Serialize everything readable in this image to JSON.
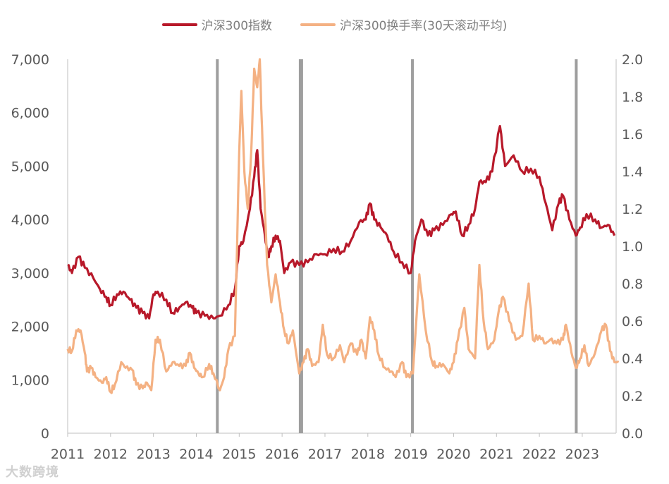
{
  "chart_data": {
    "type": "line",
    "title": "",
    "legend_position": "top",
    "xlim": [
      2011,
      2023.79
    ],
    "x_ticks": [
      "2011",
      "2012",
      "2013",
      "2014",
      "2015",
      "2016",
      "2017",
      "2018",
      "2019",
      "2020",
      "2021",
      "2022",
      "2023"
    ],
    "y_left": {
      "lim": [
        0,
        7000
      ],
      "ticks": [
        "0",
        "1,000",
        "2,000",
        "3,000",
        "4,000",
        "5,000",
        "6,000",
        "7,000"
      ]
    },
    "y_right": {
      "lim": [
        0,
        2.0
      ],
      "ticks": [
        "0.0",
        "0.2",
        "0.4",
        "0.6",
        "0.8",
        "1.0",
        "1.2",
        "1.4",
        "1.6",
        "1.8",
        "2.0"
      ]
    },
    "vertical_markers": [
      2014.49,
      2016.44,
      2019.04,
      2022.86
    ],
    "series": [
      {
        "name": "沪深300指数",
        "axis": "left",
        "color": "#B8192A",
        "x": [
          2011.0,
          2011.1,
          2011.25,
          2011.4,
          2011.6,
          2011.75,
          2011.9,
          2012.0,
          2012.15,
          2012.3,
          2012.45,
          2012.6,
          2012.75,
          2012.9,
          2013.0,
          2013.1,
          2013.3,
          2013.45,
          2013.6,
          2013.75,
          2013.9,
          2014.0,
          2014.2,
          2014.4,
          2014.55,
          2014.75,
          2014.9,
          2015.0,
          2015.1,
          2015.25,
          2015.35,
          2015.42,
          2015.5,
          2015.6,
          2015.67,
          2015.75,
          2015.85,
          2015.95,
          2016.05,
          2016.2,
          2016.4,
          2016.6,
          2016.8,
          2017.0,
          2017.2,
          2017.4,
          2017.6,
          2017.8,
          2017.95,
          2018.05,
          2018.15,
          2018.3,
          2018.45,
          2018.6,
          2018.8,
          2019.0,
          2019.1,
          2019.25,
          2019.4,
          2019.55,
          2019.75,
          2019.95,
          2020.05,
          2020.2,
          2020.35,
          2020.5,
          2020.6,
          2020.75,
          2020.9,
          2021.08,
          2021.2,
          2021.4,
          2021.6,
          2021.8,
          2022.0,
          2022.15,
          2022.3,
          2022.45,
          2022.55,
          2022.7,
          2022.85,
          2022.95,
          2023.1,
          2023.3,
          2023.45,
          2023.6,
          2023.75
        ],
        "values": [
          3150,
          3000,
          3300,
          3100,
          2900,
          2700,
          2550,
          2400,
          2600,
          2650,
          2500,
          2350,
          2250,
          2150,
          2600,
          2650,
          2500,
          2250,
          2350,
          2450,
          2350,
          2250,
          2200,
          2150,
          2200,
          2400,
          2700,
          3500,
          3600,
          4200,
          4800,
          5300,
          4200,
          3700,
          3300,
          3500,
          3700,
          3600,
          3000,
          3200,
          3150,
          3200,
          3350,
          3350,
          3450,
          3400,
          3600,
          3950,
          4000,
          4300,
          4000,
          3850,
          3700,
          3400,
          3200,
          3000,
          3600,
          4000,
          3700,
          3800,
          3900,
          4100,
          4150,
          3700,
          3900,
          4200,
          4700,
          4700,
          4900,
          5750,
          5000,
          5200,
          4900,
          4950,
          4800,
          4300,
          3800,
          4300,
          4450,
          4000,
          3700,
          3850,
          4100,
          4000,
          3850,
          3900,
          3700
        ]
      },
      {
        "name": "沪深300换手率(30天滚动平均)",
        "axis": "right",
        "color": "#F4B183",
        "x": [
          2011.0,
          2011.1,
          2011.2,
          2011.3,
          2011.4,
          2011.45,
          2011.55,
          2011.65,
          2011.8,
          2011.9,
          2012.0,
          2012.1,
          2012.25,
          2012.35,
          2012.5,
          2012.6,
          2012.75,
          2012.85,
          2012.95,
          2013.05,
          2013.15,
          2013.3,
          2013.45,
          2013.6,
          2013.75,
          2013.85,
          2013.95,
          2014.05,
          2014.15,
          2014.3,
          2014.4,
          2014.55,
          2014.65,
          2014.75,
          2014.9,
          2015.0,
          2015.05,
          2015.12,
          2015.2,
          2015.28,
          2015.35,
          2015.42,
          2015.48,
          2015.55,
          2015.65,
          2015.75,
          2015.85,
          2015.95,
          2016.05,
          2016.15,
          2016.25,
          2016.4,
          2016.5,
          2016.6,
          2016.7,
          2016.85,
          2016.95,
          2017.05,
          2017.2,
          2017.35,
          2017.45,
          2017.6,
          2017.75,
          2017.85,
          2017.95,
          2018.05,
          2018.15,
          2018.25,
          2018.4,
          2018.55,
          2018.65,
          2018.8,
          2018.9,
          2019.05,
          2019.2,
          2019.35,
          2019.5,
          2019.6,
          2019.75,
          2019.9,
          2020.0,
          2020.1,
          2020.25,
          2020.35,
          2020.5,
          2020.6,
          2020.7,
          2020.8,
          2020.95,
          2021.05,
          2021.15,
          2021.3,
          2021.45,
          2021.6,
          2021.75,
          2021.85,
          2022.0,
          2022.15,
          2022.25,
          2022.4,
          2022.55,
          2022.62,
          2022.75,
          2022.85,
          2022.95,
          2023.05,
          2023.15,
          2023.3,
          2023.45,
          2023.55,
          2023.65,
          2023.75,
          2023.85
        ],
        "values": [
          0.45,
          0.44,
          0.55,
          0.55,
          0.43,
          0.33,
          0.35,
          0.3,
          0.27,
          0.3,
          0.22,
          0.26,
          0.38,
          0.35,
          0.34,
          0.26,
          0.24,
          0.27,
          0.23,
          0.5,
          0.5,
          0.33,
          0.38,
          0.36,
          0.36,
          0.43,
          0.35,
          0.32,
          0.3,
          0.37,
          0.32,
          0.23,
          0.3,
          0.45,
          0.52,
          1.5,
          1.83,
          1.4,
          1.2,
          1.5,
          1.95,
          1.85,
          2.0,
          1.5,
          0.9,
          0.7,
          0.85,
          0.7,
          0.55,
          0.48,
          0.55,
          0.32,
          0.38,
          0.45,
          0.36,
          0.38,
          0.58,
          0.42,
          0.4,
          0.47,
          0.38,
          0.48,
          0.42,
          0.5,
          0.4,
          0.62,
          0.55,
          0.42,
          0.35,
          0.33,
          0.3,
          0.38,
          0.3,
          0.32,
          0.85,
          0.55,
          0.38,
          0.36,
          0.37,
          0.32,
          0.38,
          0.5,
          0.67,
          0.45,
          0.4,
          0.9,
          0.6,
          0.45,
          0.5,
          0.65,
          0.73,
          0.6,
          0.5,
          0.52,
          0.8,
          0.5,
          0.52,
          0.48,
          0.5,
          0.48,
          0.5,
          0.58,
          0.43,
          0.35,
          0.4,
          0.47,
          0.36,
          0.43,
          0.55,
          0.58,
          0.44,
          0.38,
          0.38
        ]
      }
    ],
    "watermark": "大数跨境"
  }
}
